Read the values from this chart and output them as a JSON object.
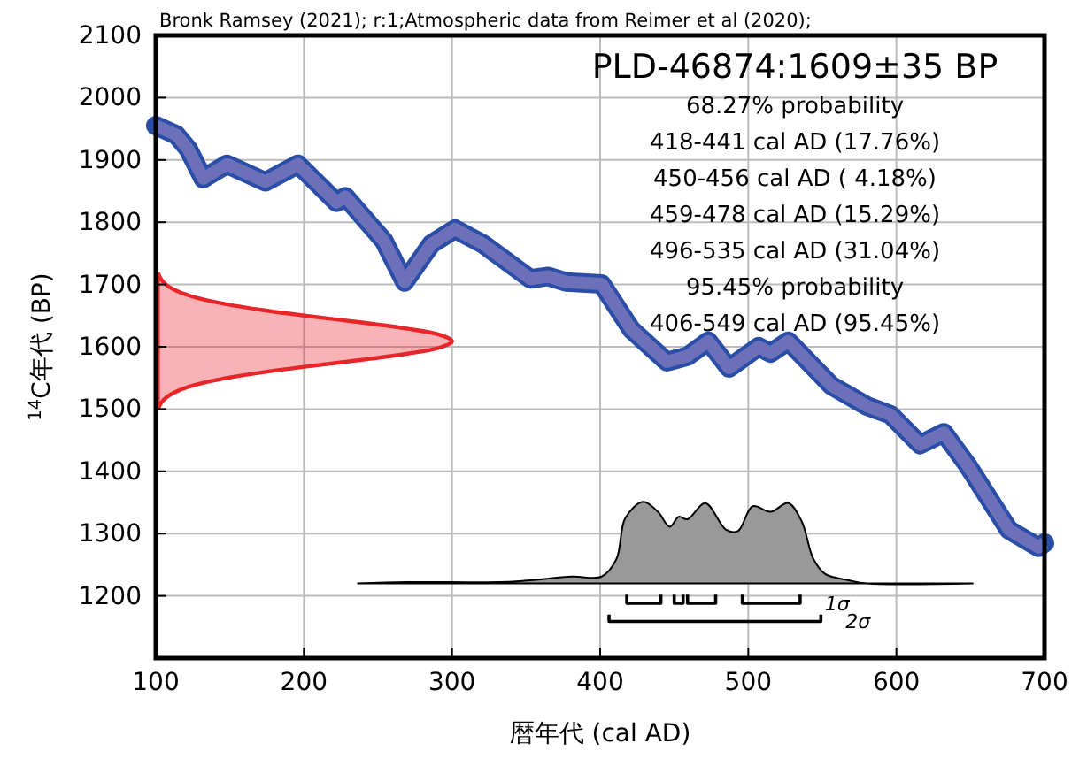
{
  "chart_data": {
    "type": "line",
    "title": "PLD-46874:1609±35 BP",
    "subtitle": "Bronk Ramsey (2021); r:1;Atmospheric data from Reimer et al (2020);",
    "xlabel": "暦年代 (cal AD)",
    "ylabel": "$^{14}$C年代 (BP)",
    "xlim": [
      100,
      700
    ],
    "xticks": [
      100,
      200,
      300,
      400,
      500,
      600,
      700
    ],
    "ylim": [
      1100,
      2100
    ],
    "yticks": [
      1200,
      1300,
      1400,
      1500,
      1600,
      1700,
      1800,
      1900,
      2000,
      2100
    ],
    "grid": true,
    "annotations": [
      "68.27% probability",
      "418-441 cal AD (17.76%)",
      "450-456 cal AD ( 4.18%)",
      "459-478 cal AD (15.29%)",
      "496-535 cal AD (31.04%)",
      "95.45% probability",
      "406-549 cal AD (95.45%)",
      {
        "text": "1σ",
        "x": 535,
        "y": 1188
      },
      {
        "text": "2σ",
        "x": 549,
        "y": 1159
      }
    ],
    "series": [
      {
        "color": "#6b70b8",
        "x": [
          100,
          114,
          122,
          132,
          148,
          174,
          196,
          222,
          228,
          254,
          268,
          286,
          302,
          321,
          353,
          365,
          377,
          401,
          421,
          445,
          459,
          473,
          487,
          507,
          515,
          527,
          556,
          580,
          596,
          616,
          632,
          648,
          676,
          696,
          700
        ],
        "values": [
          1955,
          1940,
          1917,
          1870,
          1893,
          1865,
          1893,
          1832,
          1841,
          1770,
          1704,
          1765,
          1789,
          1765,
          1709,
          1713,
          1704,
          1701,
          1628,
          1576,
          1585,
          1609,
          1566,
          1600,
          1590,
          1609,
          1538,
          1505,
          1491,
          1443,
          1462,
          1410,
          1306,
          1278,
          1285
        ]
      },
      {
        "type": "area",
        "color": "#e8262a",
        "x": [
          101.4,
          103.4,
          107.3,
          114.7,
          127,
          146,
          172,
          204,
          239,
          270,
          292,
          300,
          292,
          270,
          239,
          204,
          172,
          146,
          127,
          114.7,
          107.3,
          103.4,
          101.4
        ],
        "values": [
          1499,
          1509,
          1519,
          1529,
          1539,
          1549,
          1559,
          1569,
          1579,
          1589,
          1599,
          1609,
          1619,
          1629,
          1639,
          1649,
          1659,
          1669,
          1679,
          1689,
          1699,
          1709,
          1719
        ]
      },
      {
        "type": "area",
        "color": "#999999",
        "x": [
          236,
          270,
          341,
          381,
          401,
          411,
          417,
          429,
          439,
          447,
          453,
          459,
          471,
          485,
          493,
          503,
          515,
          527,
          536,
          544,
          552,
          568,
          580,
          652
        ],
        "values": [
          1220,
          1222,
          1223,
          1231,
          1231,
          1259,
          1325,
          1351,
          1335,
          1311,
          1327,
          1323,
          1349,
          1306,
          1304,
          1344,
          1335,
          1349,
          1320,
          1259,
          1235,
          1225,
          1220,
          1220
        ]
      },
      {
        "color": "#000000",
        "x": [
          418,
          418,
          441,
          441,
          null,
          450,
          450,
          456,
          456,
          null,
          459,
          459,
          478,
          478,
          null,
          496,
          496,
          535,
          535
        ],
        "values": [
          1202,
          1188,
          1188,
          1202,
          null,
          1202,
          1188,
          1188,
          1202,
          null,
          1202,
          1188,
          1188,
          1202,
          null,
          1202,
          1188,
          1188,
          1202
        ]
      },
      {
        "color": "#000000",
        "x": [
          406,
          406,
          549,
          549
        ],
        "values": [
          1170,
          1159,
          1159,
          1170
        ]
      }
    ]
  }
}
